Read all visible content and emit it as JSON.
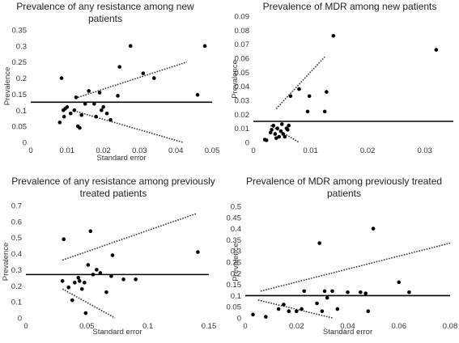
{
  "chart_data": [
    {
      "type": "scatter",
      "title_lines": [
        "Prevalence of any resistance among new",
        "patients"
      ],
      "xlabel": "Standard error",
      "ylabel": "Prevalence",
      "xlim": [
        0,
        0.05
      ],
      "ylim": [
        0,
        0.35
      ],
      "xticks": [
        0,
        0.01,
        0.02,
        0.03,
        0.04,
        0.05
      ],
      "xtick_labels": [
        "0",
        "0.01",
        "0.02",
        "0.03",
        "0.04",
        "0.05"
      ],
      "yticks": [
        0,
        0.05,
        0.1,
        0.15,
        0.2,
        0.25,
        0.3,
        0.35
      ],
      "ytick_labels": [
        "0",
        "0.05",
        "0.1",
        "0.15",
        "0.2",
        "0.25",
        "0.3",
        "0.35"
      ],
      "pooled": 0.125,
      "funnel_upper": [
        [
          0.013,
          0.14
        ],
        [
          0.043,
          0.25
        ]
      ],
      "funnel_lower": [
        [
          0.012,
          0.098
        ],
        [
          0.042,
          0.0
        ]
      ],
      "points": [
        [
          0.008,
          0.062
        ],
        [
          0.0085,
          0.2
        ],
        [
          0.009,
          0.1
        ],
        [
          0.0095,
          0.105
        ],
        [
          0.0092,
          0.08
        ],
        [
          0.01,
          0.11
        ],
        [
          0.011,
          0.09
        ],
        [
          0.012,
          0.1
        ],
        [
          0.0125,
          0.14
        ],
        [
          0.013,
          0.05
        ],
        [
          0.0135,
          0.045
        ],
        [
          0.014,
          0.085
        ],
        [
          0.015,
          0.12
        ],
        [
          0.016,
          0.16
        ],
        [
          0.0175,
          0.12
        ],
        [
          0.018,
          0.08
        ],
        [
          0.019,
          0.155
        ],
        [
          0.0195,
          0.1
        ],
        [
          0.02,
          0.11
        ],
        [
          0.021,
          0.09
        ],
        [
          0.022,
          0.07
        ],
        [
          0.024,
          0.145
        ],
        [
          0.0245,
          0.235
        ],
        [
          0.0275,
          0.3
        ],
        [
          0.031,
          0.215
        ],
        [
          0.034,
          0.2
        ],
        [
          0.046,
          0.148
        ],
        [
          0.048,
          0.3
        ]
      ]
    },
    {
      "type": "scatter",
      "title_lines": [
        "Prevalence of MDR among new patients"
      ],
      "xlabel": "",
      "ylabel": "Prevalence",
      "xlim": [
        0,
        0.035
      ],
      "ylim": [
        0,
        0.09
      ],
      "xticks": [
        0,
        0.01,
        0.02,
        0.03
      ],
      "xtick_labels": [
        "0",
        "0.01",
        "0.02",
        "0.03"
      ],
      "yticks": [
        0,
        0.01,
        0.02,
        0.03,
        0.04,
        0.05,
        0.06,
        0.07,
        0.08,
        0.09
      ],
      "ytick_labels": [
        "0",
        "0.01",
        "0.02",
        "0.03",
        "0.04",
        "0.05",
        "0.06",
        "0.07",
        "0.08",
        "0.09"
      ],
      "pooled": 0.015,
      "funnel_upper": [
        [
          0.004,
          0.024
        ],
        [
          0.0125,
          0.061
        ]
      ],
      "funnel_lower": [
        [
          0.003,
          0.012
        ],
        [
          0.008,
          0.0
        ]
      ],
      "points": [
        [
          0.002,
          0.002
        ],
        [
          0.0023,
          0.0015
        ],
        [
          0.003,
          0.007
        ],
        [
          0.0032,
          0.009
        ],
        [
          0.0035,
          0.012
        ],
        [
          0.0038,
          0.006
        ],
        [
          0.004,
          0.003
        ],
        [
          0.0042,
          0.01
        ],
        [
          0.0045,
          0.004
        ],
        [
          0.0048,
          0.008
        ],
        [
          0.005,
          0.013
        ],
        [
          0.0052,
          0.006
        ],
        [
          0.0055,
          0.004
        ],
        [
          0.0058,
          0.01
        ],
        [
          0.006,
          0.009
        ],
        [
          0.0062,
          0.012
        ],
        [
          0.0065,
          0.033
        ],
        [
          0.008,
          0.038
        ],
        [
          0.0095,
          0.022
        ],
        [
          0.0098,
          0.033
        ],
        [
          0.0125,
          0.022
        ],
        [
          0.0128,
          0.036
        ],
        [
          0.014,
          0.076
        ],
        [
          0.032,
          0.066
        ]
      ]
    },
    {
      "type": "scatter",
      "title_lines": [
        "Prevalence of any resistance among previously",
        "treated patients"
      ],
      "xlabel": "Standard error",
      "ylabel": "Prevalence",
      "xlim": [
        0,
        0.15
      ],
      "ylim": [
        0,
        0.7
      ],
      "xticks": [
        0,
        0.05,
        0.1,
        0.15
      ],
      "xtick_labels": [
        "0",
        "0.05",
        "0.1",
        "0.15"
      ],
      "yticks": [
        0,
        0.1,
        0.2,
        0.3,
        0.4,
        0.5,
        0.6,
        0.7
      ],
      "ytick_labels": [
        "0",
        "0.1",
        "0.2",
        "0.3",
        "0.4",
        "0.5",
        "0.6",
        "0.7"
      ],
      "pooled": 0.27,
      "funnel_upper": [
        [
          0.03,
          0.36
        ],
        [
          0.14,
          0.65
        ]
      ],
      "funnel_lower": [
        [
          0.03,
          0.18
        ],
        [
          0.073,
          0.0
        ]
      ],
      "points": [
        [
          0.03,
          0.23
        ],
        [
          0.031,
          0.49
        ],
        [
          0.035,
          0.19
        ],
        [
          0.038,
          0.11
        ],
        [
          0.04,
          0.22
        ],
        [
          0.043,
          0.25
        ],
        [
          0.044,
          0.23
        ],
        [
          0.046,
          0.18
        ],
        [
          0.048,
          0.22
        ],
        [
          0.049,
          0.03
        ],
        [
          0.051,
          0.33
        ],
        [
          0.053,
          0.54
        ],
        [
          0.055,
          0.27
        ],
        [
          0.058,
          0.3
        ],
        [
          0.061,
          0.28
        ],
        [
          0.066,
          0.16
        ],
        [
          0.07,
          0.26
        ],
        [
          0.071,
          0.39
        ],
        [
          0.08,
          0.24
        ],
        [
          0.09,
          0.24
        ],
        [
          0.141,
          0.41
        ]
      ]
    },
    {
      "type": "scatter",
      "title_lines": [
        "Prevalence of MDR among previously treated",
        "patients"
      ],
      "xlabel": "Standard error",
      "ylabel": "Prevalence",
      "xlim": [
        0,
        0.08
      ],
      "ylim": [
        0,
        0.5
      ],
      "xticks": [
        0,
        0.02,
        0.04,
        0.06,
        0.08
      ],
      "xtick_labels": [
        "0",
        "0.02",
        "0.04",
        "0.06",
        "0.08"
      ],
      "yticks": [
        0,
        0.05,
        0.1,
        0.15,
        0.2,
        0.25,
        0.3,
        0.35,
        0.4,
        0.45,
        0.5
      ],
      "ytick_labels": [
        "0",
        "0.05",
        "0.1",
        "0.15",
        "0.2",
        "0.25",
        "0.3",
        "0.35",
        "0.4",
        "0.45",
        "0.5"
      ],
      "pooled": 0.1,
      "funnel_upper": [
        [
          0.006,
          0.12
        ],
        [
          0.08,
          0.335
        ]
      ],
      "funnel_lower": [
        [
          0.005,
          0.08
        ],
        [
          0.034,
          0.0
        ]
      ],
      "points": [
        [
          0.003,
          0.015
        ],
        [
          0.008,
          0.005
        ],
        [
          0.013,
          0.04
        ],
        [
          0.015,
          0.06
        ],
        [
          0.017,
          0.03
        ],
        [
          0.02,
          0.03
        ],
        [
          0.022,
          0.04
        ],
        [
          0.023,
          0.12
        ],
        [
          0.028,
          0.065
        ],
        [
          0.029,
          0.335
        ],
        [
          0.03,
          0.03
        ],
        [
          0.031,
          0.12
        ],
        [
          0.032,
          0.09
        ],
        [
          0.034,
          0.12
        ],
        [
          0.036,
          0.04
        ],
        [
          0.04,
          0.115
        ],
        [
          0.045,
          0.115
        ],
        [
          0.047,
          0.11
        ],
        [
          0.048,
          0.03
        ],
        [
          0.05,
          0.4
        ],
        [
          0.06,
          0.16
        ],
        [
          0.064,
          0.115
        ]
      ]
    }
  ]
}
